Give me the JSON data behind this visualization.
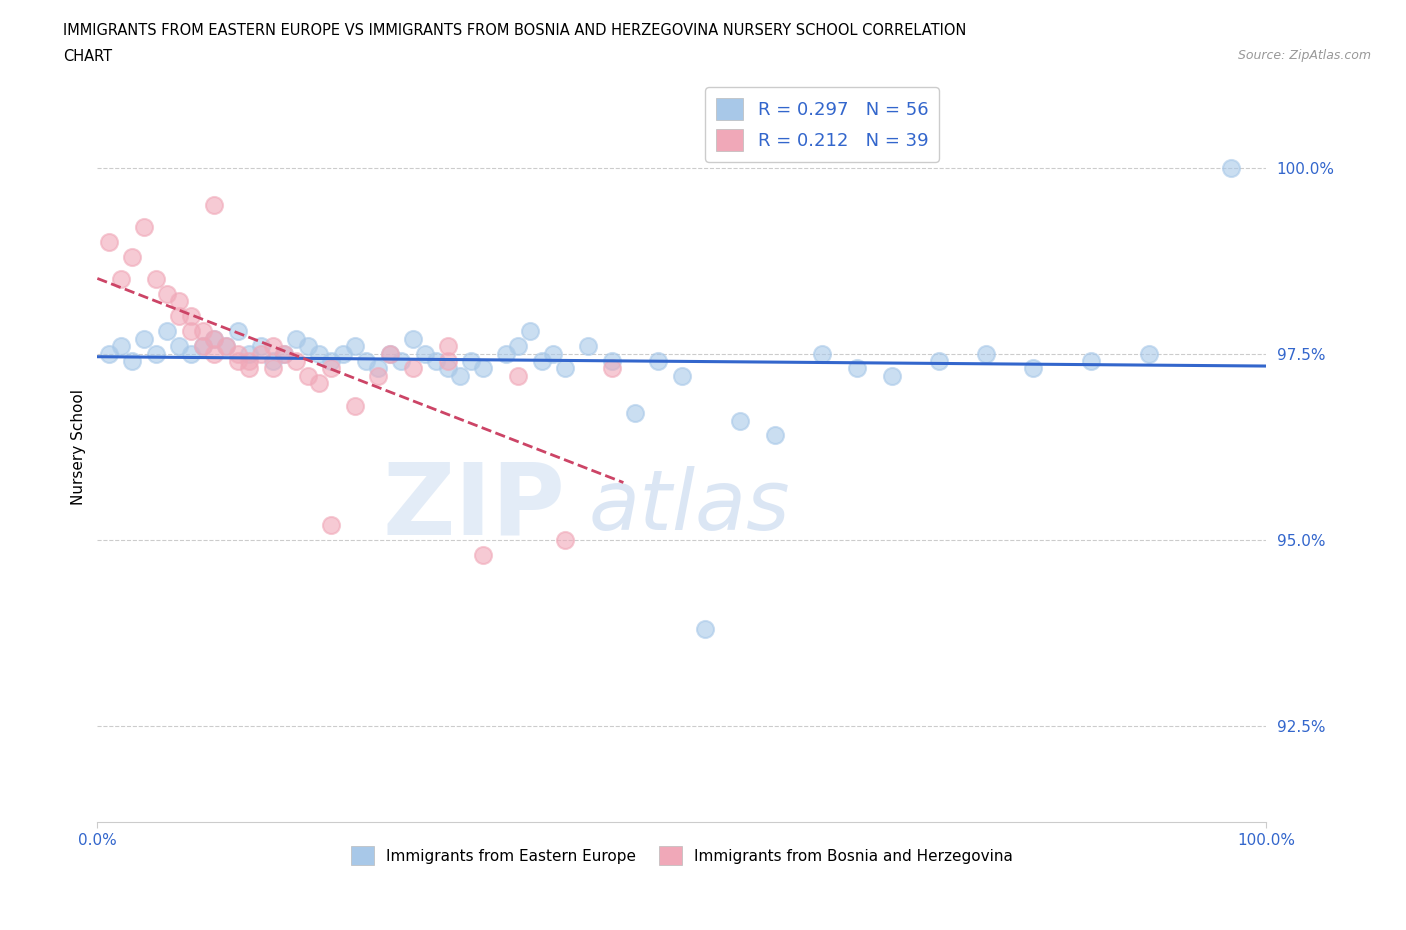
{
  "title_line1": "IMMIGRANTS FROM EASTERN EUROPE VS IMMIGRANTS FROM BOSNIA AND HERZEGOVINA NURSERY SCHOOL CORRELATION",
  "title_line2": "CHART",
  "source_text": "Source: ZipAtlas.com",
  "ylabel": "Nursery School",
  "y_tick_values": [
    92.5,
    95.0,
    97.5,
    100.0
  ],
  "x_range": [
    0.0,
    100.0
  ],
  "y_range": [
    91.2,
    101.3
  ],
  "legend_label_blue": "R = 0.297   N = 56",
  "legend_label_pink": "R = 0.212   N = 39",
  "legend_label_blue_bottom": "Immigrants from Eastern Europe",
  "legend_label_pink_bottom": "Immigrants from Bosnia and Herzegovina",
  "blue_color": "#a8c8e8",
  "pink_color": "#f0a8b8",
  "blue_line_color": "#3366cc",
  "pink_line_color": "#cc4466",
  "blue_scatter_x": [
    1,
    2,
    3,
    4,
    5,
    6,
    7,
    8,
    9,
    10,
    11,
    12,
    13,
    14,
    15,
    16,
    17,
    18,
    19,
    20,
    21,
    22,
    23,
    24,
    25,
    26,
    27,
    28,
    29,
    30,
    31,
    32,
    33,
    35,
    36,
    37,
    38,
    39,
    40,
    42,
    44,
    46,
    48,
    50,
    52,
    55,
    58,
    62,
    65,
    68,
    72,
    76,
    80,
    85,
    90,
    97
  ],
  "blue_scatter_y": [
    97.5,
    97.6,
    97.4,
    97.7,
    97.5,
    97.8,
    97.6,
    97.5,
    97.6,
    97.7,
    97.6,
    97.8,
    97.5,
    97.6,
    97.4,
    97.5,
    97.7,
    97.6,
    97.5,
    97.4,
    97.5,
    97.6,
    97.4,
    97.3,
    97.5,
    97.4,
    97.7,
    97.5,
    97.4,
    97.3,
    97.2,
    97.4,
    97.3,
    97.5,
    97.6,
    97.8,
    97.4,
    97.5,
    97.3,
    97.6,
    97.4,
    96.7,
    97.4,
    97.2,
    93.8,
    96.6,
    96.4,
    97.5,
    97.3,
    97.2,
    97.4,
    97.5,
    97.3,
    97.4,
    97.5,
    100.0
  ],
  "pink_scatter_x": [
    1,
    2,
    3,
    4,
    5,
    6,
    7,
    7,
    8,
    8,
    9,
    9,
    10,
    10,
    11,
    12,
    12,
    13,
    13,
    14,
    15,
    15,
    16,
    17,
    18,
    19,
    20,
    22,
    24,
    25,
    27,
    30,
    33,
    36,
    40,
    44,
    10,
    20,
    30
  ],
  "pink_scatter_y": [
    99.0,
    98.5,
    98.8,
    99.2,
    98.5,
    98.3,
    98.2,
    98.0,
    97.8,
    98.0,
    97.8,
    97.6,
    97.5,
    97.7,
    97.6,
    97.5,
    97.4,
    97.4,
    97.3,
    97.5,
    97.3,
    97.6,
    97.5,
    97.4,
    97.2,
    97.1,
    97.3,
    96.8,
    97.2,
    97.5,
    97.3,
    97.4,
    94.8,
    97.2,
    95.0,
    97.3,
    99.5,
    95.2,
    97.6
  ],
  "watermark_zip_color": "#c0d8f0",
  "watermark_atlas_color": "#a8c8e8"
}
